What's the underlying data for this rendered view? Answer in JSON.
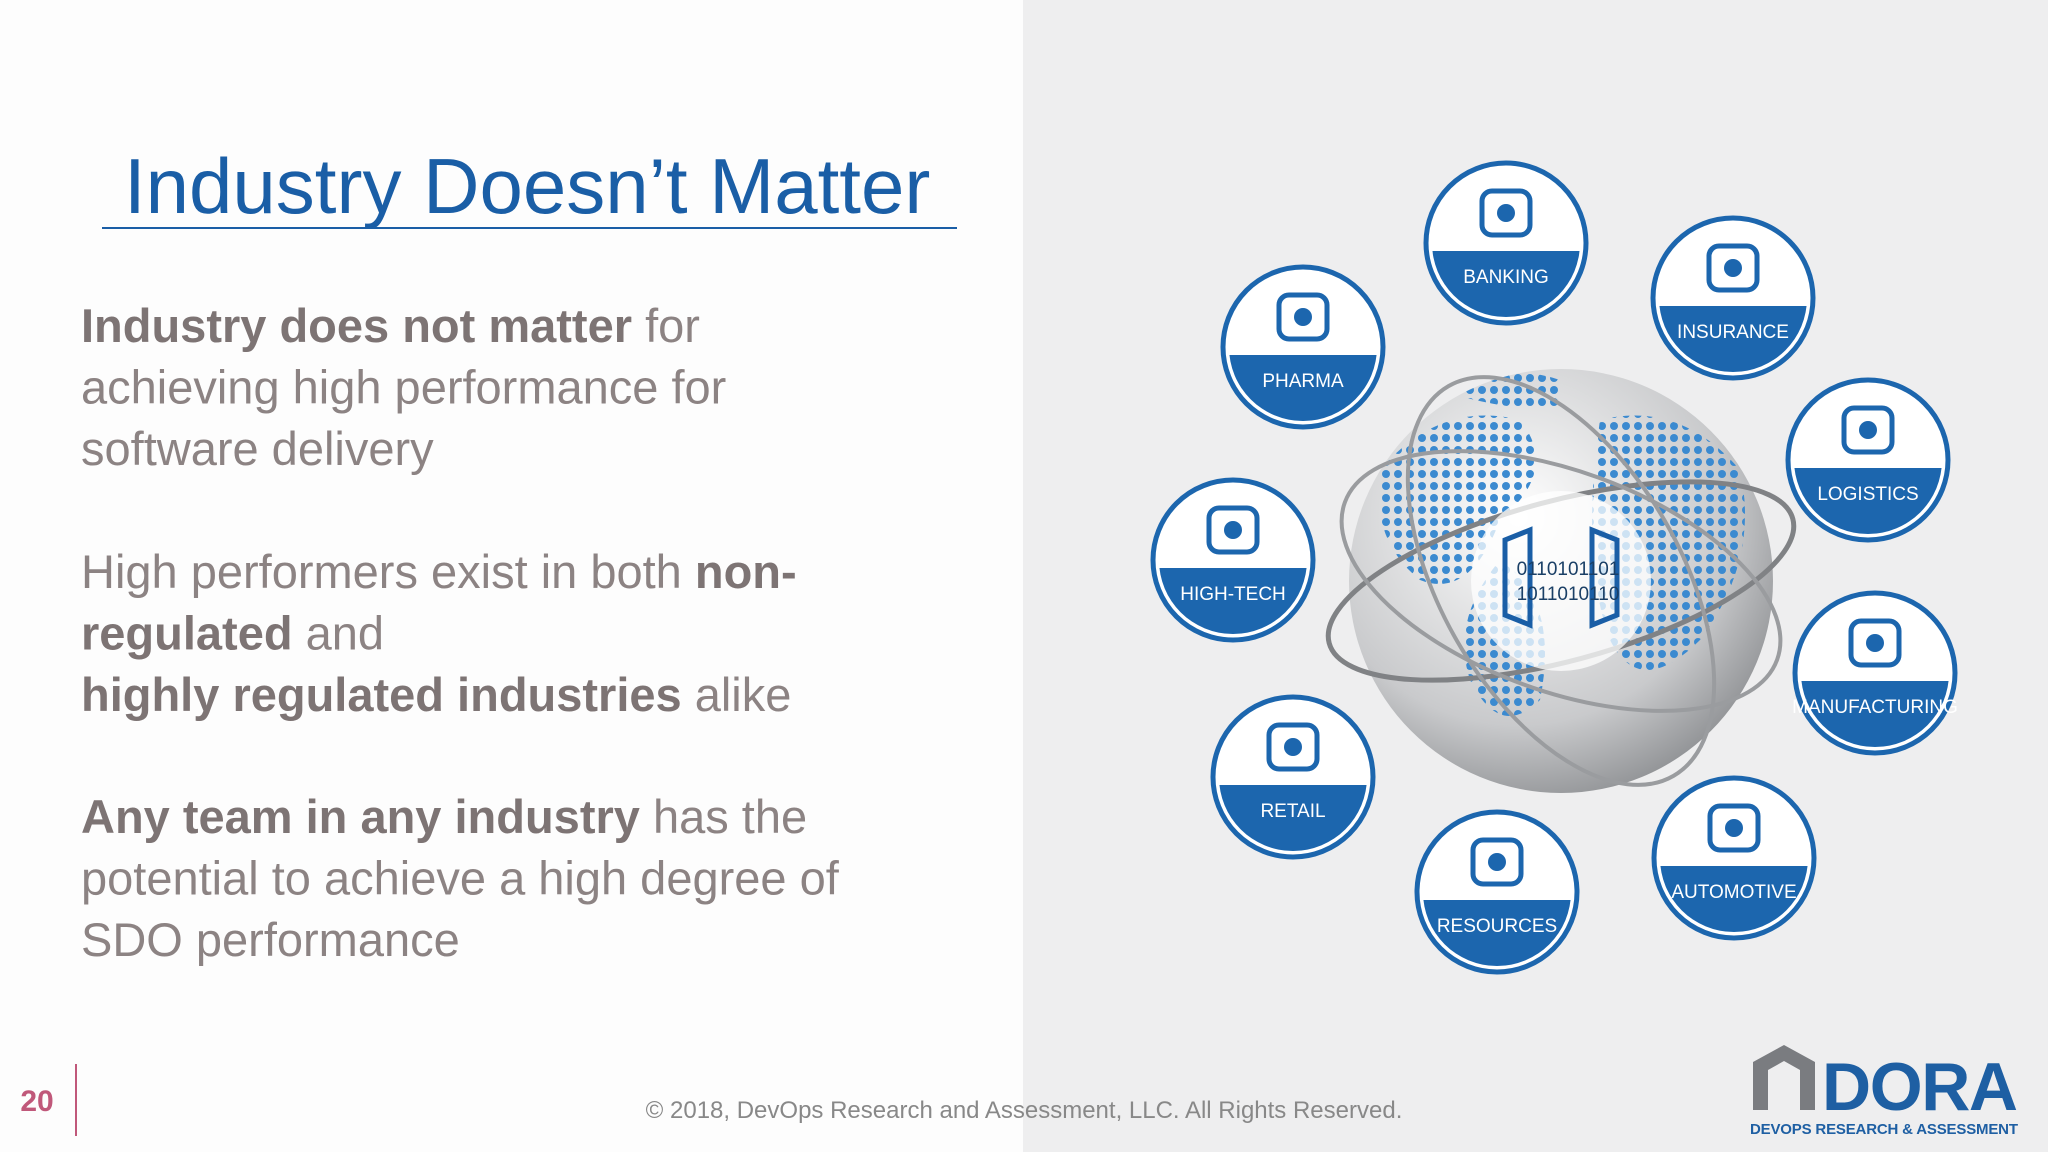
{
  "header": {
    "title": "Industry Doesn’t Matter"
  },
  "body": {
    "paragraphs": [
      {
        "lines": [
          {
            "runs": [
              {
                "text": "Industry does not matter",
                "bold": true
              },
              {
                "text": " for",
                "bold": false
              }
            ]
          },
          {
            "runs": [
              {
                "text": "achieving high performance for",
                "bold": false
              }
            ]
          },
          {
            "runs": [
              {
                "text": "software delivery",
                "bold": false
              }
            ]
          }
        ]
      },
      {
        "lines": [
          {
            "runs": [
              {
                "text": "High performers exist in both ",
                "bold": false
              },
              {
                "text": "non-",
                "bold": true
              }
            ]
          },
          {
            "runs": [
              {
                "text": "regulated",
                "bold": true
              },
              {
                "text": " and",
                "bold": false
              }
            ]
          },
          {
            "runs": [
              {
                "text": "highly regulated industries",
                "bold": true
              },
              {
                "text": " alike",
                "bold": false
              }
            ]
          }
        ]
      },
      {
        "lines": [
          {
            "runs": [
              {
                "text": "Any team in any industry",
                "bold": true
              },
              {
                "text": " has the",
                "bold": false
              }
            ]
          },
          {
            "runs": [
              {
                "text": "potential to achieve a high degree of",
                "bold": false
              }
            ]
          },
          {
            "runs": [
              {
                "text": "SDO performance",
                "bold": false
              }
            ]
          }
        ]
      }
    ]
  },
  "industries": [
    "BANKING",
    "INSURANCE",
    "PHARMA",
    "LOGISTICS",
    "HIGH-TECH",
    "MANUFACTURING",
    "RETAIL",
    "RESOURCES",
    "AUTOMOTIVE"
  ],
  "globe": {
    "binary": [
      "0110101101",
      "1011010110"
    ]
  },
  "footer": {
    "page": "20",
    "copyright": "© 2018, DevOps Research and Assessment, LLC. All Rights Reserved."
  },
  "logo": {
    "name": "DORA",
    "tagline": "DEVOPS RESEARCH & ASSESSMENT"
  }
}
